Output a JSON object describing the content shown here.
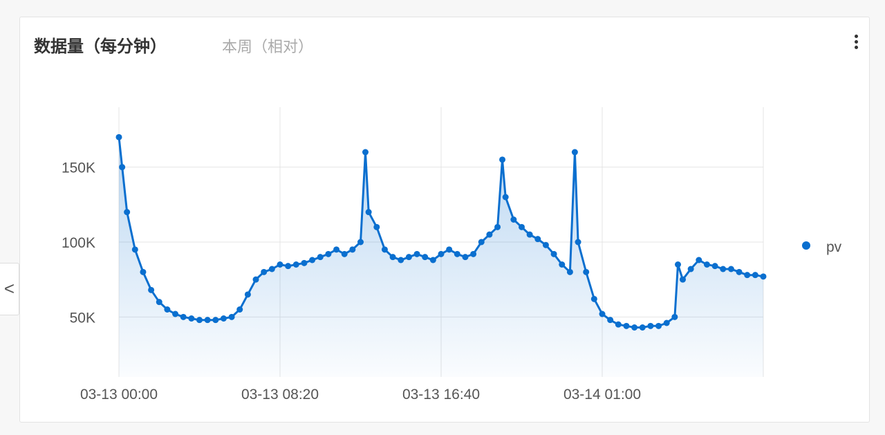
{
  "card": {
    "title": "数据量（每分钟）",
    "subtitle": "本周（相对）",
    "menu_icon": "more-vertical-icon"
  },
  "side_tab": {
    "icon": "chevron-left-icon",
    "label": "<"
  },
  "chart_data": {
    "type": "scatter",
    "style": "line with markers and gradient area fill",
    "color": "#0a6fcf",
    "x_unit": "minutes since 03-13 00:00",
    "xlim": [
      0,
      2000
    ],
    "ylim": [
      10000,
      190000
    ],
    "grid": true,
    "legend_placement": "right",
    "x_ticks": [
      {
        "value": 0,
        "label": "03-13 00:00"
      },
      {
        "value": 500,
        "label": "03-13 08:20"
      },
      {
        "value": 1000,
        "label": "03-13 16:40"
      },
      {
        "value": 1500,
        "label": "03-14 01:00"
      },
      {
        "value": 2000,
        "label": ""
      }
    ],
    "y_ticks": [
      {
        "value": 50000,
        "label": "50K"
      },
      {
        "value": 100000,
        "label": "100K"
      },
      {
        "value": 150000,
        "label": "150K"
      }
    ],
    "series": [
      {
        "name": "pv",
        "x": [
          0,
          10,
          25,
          50,
          75,
          100,
          125,
          150,
          175,
          200,
          225,
          250,
          275,
          300,
          325,
          350,
          375,
          400,
          425,
          450,
          475,
          500,
          525,
          550,
          575,
          600,
          625,
          650,
          675,
          700,
          725,
          750,
          765,
          775,
          800,
          825,
          850,
          875,
          900,
          925,
          950,
          975,
          1000,
          1025,
          1050,
          1075,
          1100,
          1125,
          1150,
          1175,
          1190,
          1200,
          1225,
          1250,
          1275,
          1300,
          1325,
          1350,
          1375,
          1400,
          1415,
          1425,
          1450,
          1475,
          1500,
          1525,
          1550,
          1575,
          1600,
          1625,
          1650,
          1675,
          1700,
          1725,
          1735,
          1750,
          1775,
          1800,
          1825,
          1850,
          1875,
          1900,
          1925,
          1950,
          1975,
          2000
        ],
        "y": [
          170000,
          150000,
          120000,
          95000,
          80000,
          68000,
          60000,
          55000,
          52000,
          50000,
          49000,
          48000,
          48000,
          48000,
          49000,
          50000,
          55000,
          65000,
          75000,
          80000,
          82000,
          85000,
          84000,
          85000,
          86000,
          88000,
          90000,
          92000,
          95000,
          92000,
          95000,
          100000,
          160000,
          120000,
          110000,
          95000,
          90000,
          88000,
          90000,
          92000,
          90000,
          88000,
          92000,
          95000,
          92000,
          90000,
          92000,
          100000,
          105000,
          110000,
          155000,
          130000,
          115000,
          110000,
          105000,
          102000,
          98000,
          92000,
          85000,
          80000,
          160000,
          100000,
          80000,
          62000,
          52000,
          48000,
          45000,
          44000,
          43000,
          43000,
          44000,
          44000,
          46000,
          50000,
          85000,
          75000,
          82000,
          88000,
          85000,
          84000,
          82000,
          82000,
          80000,
          78000,
          78000,
          77000
        ]
      }
    ]
  }
}
